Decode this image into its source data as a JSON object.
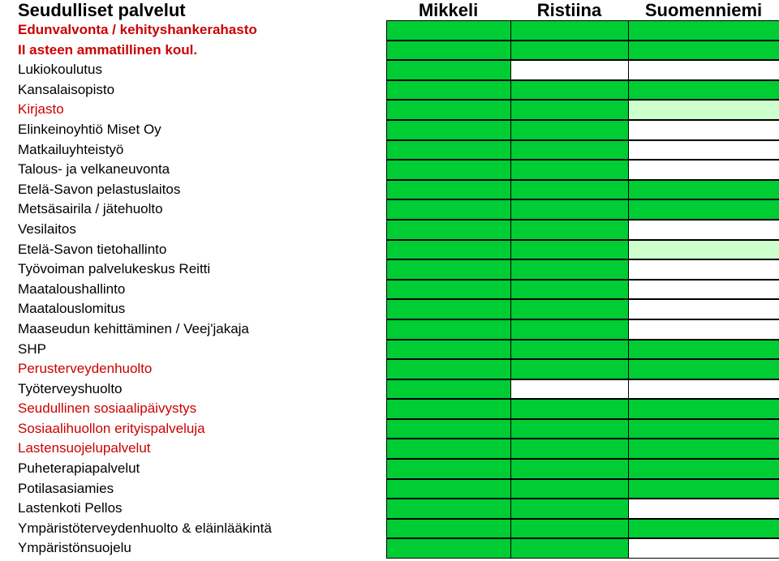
{
  "colors": {
    "full": "#00cc33",
    "partial": "#ccffcc",
    "none": "#ffffff",
    "label_red": "#cc0000",
    "label_black": "#000000"
  },
  "header": {
    "title": "Seudulliset palvelut",
    "columns": [
      "Mikkeli",
      "Ristiina",
      "Suomenniemi"
    ]
  },
  "rows": [
    {
      "label": "Edunvalvonta / kehityshankerahasto",
      "color": "red",
      "bold": true,
      "cells": [
        "full",
        "full",
        "full"
      ]
    },
    {
      "label": "II asteen ammatillinen koul.",
      "color": "red",
      "bold": true,
      "cells": [
        "full",
        "full",
        "full"
      ]
    },
    {
      "label": "Lukiokoulutus",
      "color": "black",
      "bold": false,
      "cells": [
        "full",
        "none",
        "none"
      ]
    },
    {
      "label": "Kansalaisopisto",
      "color": "black",
      "bold": false,
      "cells": [
        "full",
        "full",
        "full"
      ]
    },
    {
      "label": "Kirjasto",
      "color": "red",
      "bold": false,
      "cells": [
        "full",
        "full",
        "partial"
      ]
    },
    {
      "label": "Elinkeinoyhtiö Miset Oy",
      "color": "black",
      "bold": false,
      "cells": [
        "full",
        "full",
        "none"
      ]
    },
    {
      "label": "Matkailuyhteistyö",
      "color": "black",
      "bold": false,
      "cells": [
        "full",
        "full",
        "none"
      ]
    },
    {
      "label": "Talous- ja velkaneuvonta",
      "color": "black",
      "bold": false,
      "cells": [
        "full",
        "full",
        "none"
      ]
    },
    {
      "label": "Etelä-Savon pelastuslaitos",
      "color": "black",
      "bold": false,
      "cells": [
        "full",
        "full",
        "full"
      ]
    },
    {
      "label": "Metsäsairila / jätehuolto",
      "color": "black",
      "bold": false,
      "cells": [
        "full",
        "full",
        "full"
      ]
    },
    {
      "label": "Vesilaitos",
      "color": "black",
      "bold": false,
      "cells": [
        "full",
        "full",
        "none"
      ]
    },
    {
      "label": "Etelä-Savon tietohallinto",
      "color": "black",
      "bold": false,
      "cells": [
        "full",
        "full",
        "partial"
      ]
    },
    {
      "label": "Työvoiman palvelukeskus Reitti",
      "color": "black",
      "bold": false,
      "cells": [
        "full",
        "full",
        "none"
      ]
    },
    {
      "label": "Maataloushallinto",
      "color": "black",
      "bold": false,
      "cells": [
        "full",
        "full",
        "none"
      ]
    },
    {
      "label": "Maatalouslomitus",
      "color": "black",
      "bold": false,
      "cells": [
        "full",
        "full",
        "none"
      ]
    },
    {
      "label": "Maaseudun kehittäminen / Veej'jakaja",
      "color": "black",
      "bold": false,
      "cells": [
        "full",
        "full",
        "none"
      ]
    },
    {
      "label": "SHP",
      "color": "black",
      "bold": false,
      "cells": [
        "full",
        "full",
        "full"
      ]
    },
    {
      "label": "Perusterveydenhuolto",
      "color": "red",
      "bold": false,
      "cells": [
        "full",
        "full",
        "full"
      ]
    },
    {
      "label": "Työterveyshuolto",
      "color": "black",
      "bold": false,
      "cells": [
        "full",
        "none",
        "none"
      ]
    },
    {
      "label": "Seudullinen sosiaalipäivystys",
      "color": "red",
      "bold": false,
      "cells": [
        "full",
        "full",
        "full"
      ]
    },
    {
      "label": "Sosiaalihuollon erityispalveluja",
      "color": "red",
      "bold": false,
      "cells": [
        "full",
        "full",
        "full"
      ]
    },
    {
      "label": "Lastensuojelupalvelut",
      "color": "red",
      "bold": false,
      "cells": [
        "full",
        "full",
        "full"
      ]
    },
    {
      "label": "Puheterapiapalvelut",
      "color": "black",
      "bold": false,
      "cells": [
        "full",
        "full",
        "full"
      ]
    },
    {
      "label": "Potilasasiamies",
      "color": "black",
      "bold": false,
      "cells": [
        "full",
        "full",
        "full"
      ]
    },
    {
      "label": "Lastenkoti Pellos",
      "color": "black",
      "bold": false,
      "cells": [
        "full",
        "full",
        "none"
      ]
    },
    {
      "label": "Ympäristöterveydenhuolto & eläinlääkintä",
      "color": "black",
      "bold": false,
      "cells": [
        "full",
        "full",
        "full"
      ]
    },
    {
      "label": "Ympäristönsuojelu",
      "color": "black",
      "bold": false,
      "cells": [
        "full",
        "full",
        "none"
      ]
    }
  ]
}
